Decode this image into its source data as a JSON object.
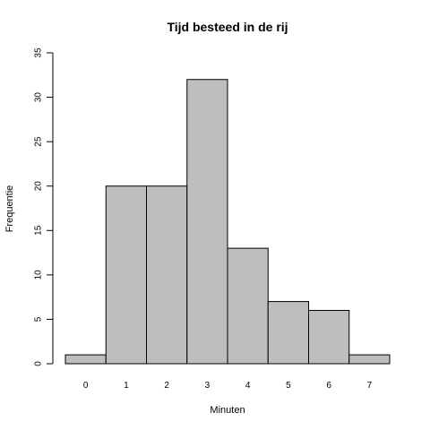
{
  "chart_data": {
    "type": "bar",
    "title": "Tijd besteed in de rij",
    "xlabel": "Minuten",
    "ylabel": "Frequentie",
    "categories": [
      "0",
      "1",
      "2",
      "3",
      "4",
      "5",
      "6",
      "7"
    ],
    "values": [
      1,
      20,
      20,
      32,
      13,
      7,
      6,
      1
    ],
    "ylim": [
      0,
      35
    ],
    "yticks": [
      0,
      5,
      10,
      15,
      20,
      25,
      30,
      35
    ],
    "grid": false,
    "legend": "none",
    "colors": {
      "bar_fill": "#bebebe",
      "bar_stroke": "#000000"
    }
  }
}
